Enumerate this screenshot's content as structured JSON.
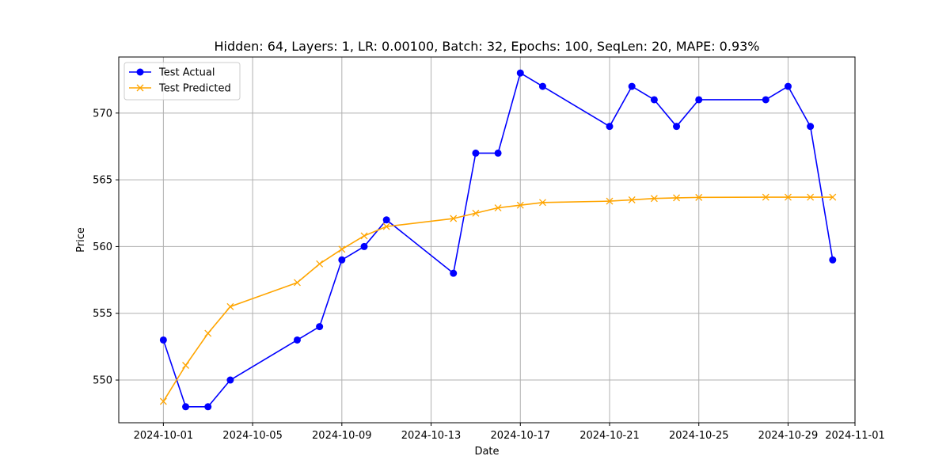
{
  "chart_data": {
    "type": "line",
    "title": "Hidden: 64, Layers: 1, LR: 0.00100, Batch: 32, Epochs: 100, SeqLen: 20, MAPE: 0.93%",
    "xlabel": "Date",
    "ylabel": "Price",
    "xlim": [
      "2024-09-29",
      "2024-11-01"
    ],
    "ylim": [
      546.8,
      574.2
    ],
    "grid": true,
    "legend_position": "top-left",
    "x_ticks": [
      "2024-10-01",
      "2024-10-05",
      "2024-10-09",
      "2024-10-13",
      "2024-10-17",
      "2024-10-21",
      "2024-10-25",
      "2024-10-29",
      "2024-11-01"
    ],
    "y_ticks": [
      550,
      555,
      560,
      565,
      570
    ],
    "x": [
      "2024-10-01",
      "2024-10-02",
      "2024-10-03",
      "2024-10-04",
      "2024-10-07",
      "2024-10-08",
      "2024-10-09",
      "2024-10-10",
      "2024-10-11",
      "2024-10-14",
      "2024-10-15",
      "2024-10-16",
      "2024-10-17",
      "2024-10-18",
      "2024-10-21",
      "2024-10-22",
      "2024-10-23",
      "2024-10-24",
      "2024-10-25",
      "2024-10-28",
      "2024-10-29",
      "2024-10-30",
      "2024-10-31"
    ],
    "series": [
      {
        "name": "Test Actual",
        "color": "#0000ff",
        "marker": "circle",
        "values": [
          553,
          548,
          548,
          550,
          553,
          554,
          559,
          560,
          562,
          558,
          567,
          567,
          573,
          572,
          569,
          572,
          571,
          569,
          571,
          571,
          572,
          569,
          559
        ]
      },
      {
        "name": "Test Predicted",
        "color": "#ffa500",
        "marker": "x",
        "values": [
          548.4,
          551.1,
          553.5,
          555.5,
          557.3,
          558.7,
          559.8,
          560.8,
          561.5,
          562.1,
          562.5,
          562.9,
          563.1,
          563.3,
          563.4,
          563.5,
          563.6,
          563.65,
          563.68,
          563.7,
          563.7,
          563.7,
          563.7
        ]
      }
    ]
  }
}
